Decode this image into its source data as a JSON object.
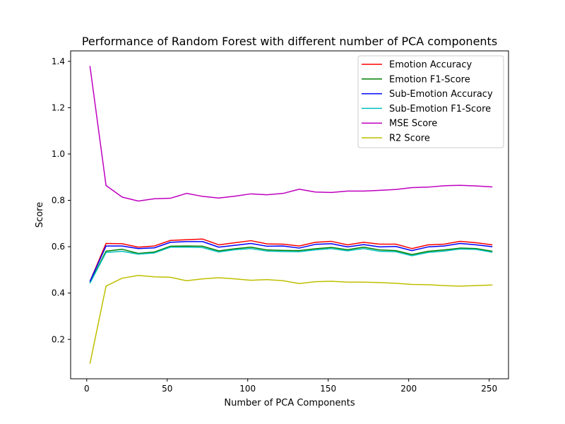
{
  "chart_data": {
    "type": "line",
    "title": "Performance of Random Forest with different number of PCA components",
    "xlabel": "Number of PCA Components",
    "ylabel": "Score",
    "xlim": [
      -10,
      262
    ],
    "ylim": [
      0.03,
      1.445
    ],
    "xticks": [
      0,
      50,
      100,
      150,
      200,
      250
    ],
    "yticks": [
      0.2,
      0.4,
      0.6,
      0.8,
      1.0,
      1.2,
      1.4
    ],
    "xtick_labels": [
      "0",
      "50",
      "100",
      "150",
      "200",
      "250"
    ],
    "ytick_labels": [
      "0.2",
      "0.4",
      "0.6",
      "0.8",
      "1.0",
      "1.2",
      "1.4"
    ],
    "grid": false,
    "legend": "top-right",
    "x": [
      2,
      12,
      22,
      32,
      42,
      52,
      62,
      72,
      82,
      92,
      102,
      112,
      122,
      132,
      142,
      152,
      162,
      172,
      182,
      192,
      202,
      212,
      222,
      232,
      242,
      252
    ],
    "series": [
      {
        "name": "Emotion Accuracy",
        "color": "#ff0000",
        "values": [
          0.45,
          0.614,
          0.613,
          0.598,
          0.603,
          0.627,
          0.63,
          0.633,
          0.608,
          0.617,
          0.626,
          0.612,
          0.611,
          0.603,
          0.619,
          0.623,
          0.608,
          0.619,
          0.611,
          0.611,
          0.592,
          0.608,
          0.611,
          0.623,
          0.617,
          0.608
        ]
      },
      {
        "name": "Emotion F1-Score",
        "color": "#008000",
        "values": [
          0.445,
          0.581,
          0.589,
          0.571,
          0.577,
          0.602,
          0.603,
          0.602,
          0.582,
          0.591,
          0.598,
          0.586,
          0.584,
          0.583,
          0.591,
          0.597,
          0.587,
          0.598,
          0.586,
          0.583,
          0.566,
          0.58,
          0.586,
          0.594,
          0.592,
          0.58
        ]
      },
      {
        "name": "Sub-Emotion Accuracy",
        "color": "#0000ff",
        "values": [
          0.45,
          0.603,
          0.603,
          0.592,
          0.595,
          0.619,
          0.622,
          0.622,
          0.598,
          0.606,
          0.614,
          0.602,
          0.603,
          0.594,
          0.61,
          0.613,
          0.599,
          0.609,
          0.599,
          0.601,
          0.583,
          0.599,
          0.603,
          0.614,
          0.608,
          0.6
        ]
      },
      {
        "name": "Sub-Emotion F1-Score",
        "color": "#00bfbf",
        "values": [
          0.442,
          0.575,
          0.58,
          0.568,
          0.573,
          0.598,
          0.598,
          0.596,
          0.577,
          0.587,
          0.592,
          0.581,
          0.579,
          0.578,
          0.586,
          0.592,
          0.582,
          0.592,
          0.58,
          0.578,
          0.561,
          0.575,
          0.581,
          0.59,
          0.588,
          0.576
        ]
      },
      {
        "name": "MSE Score",
        "color": "#bf00bf",
        "values": [
          1.38,
          0.864,
          0.814,
          0.797,
          0.807,
          0.809,
          0.83,
          0.817,
          0.81,
          0.818,
          0.828,
          0.824,
          0.83,
          0.848,
          0.836,
          0.834,
          0.84,
          0.84,
          0.843,
          0.847,
          0.855,
          0.857,
          0.863,
          0.865,
          0.862,
          0.858
        ]
      },
      {
        "name": "R2 Score",
        "color": "#bfbf00",
        "values": [
          0.095,
          0.43,
          0.464,
          0.476,
          0.47,
          0.468,
          0.453,
          0.461,
          0.466,
          0.461,
          0.455,
          0.458,
          0.453,
          0.441,
          0.449,
          0.451,
          0.447,
          0.447,
          0.445,
          0.442,
          0.437,
          0.436,
          0.432,
          0.43,
          0.432,
          0.435
        ]
      }
    ]
  }
}
